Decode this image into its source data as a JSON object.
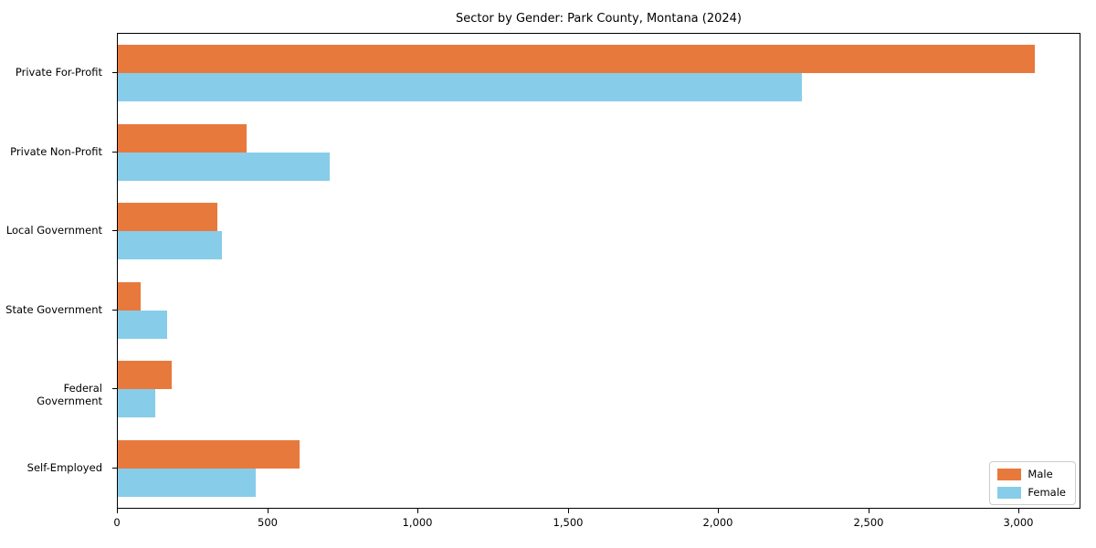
{
  "title": "Sector by Gender: Park County, Montana (2024)",
  "chart_data": {
    "type": "bar",
    "orientation": "horizontal",
    "title": "Sector by Gender: Park County, Montana (2024)",
    "xlabel": "",
    "ylabel": "",
    "categories": [
      "Private For-Profit",
      "Private Non-Profit",
      "Local Government",
      "State Government",
      "Federal Government",
      "Self-Employed"
    ],
    "series": [
      {
        "name": "Male",
        "color": "#E8793D",
        "values": [
          3050,
          430,
          330,
          75,
          180,
          605
        ]
      },
      {
        "name": "Female",
        "color": "#87CDE9",
        "values": [
          2275,
          705,
          345,
          165,
          125,
          460
        ]
      }
    ],
    "xlim": [
      0,
      3200
    ],
    "xticks": [
      0,
      500,
      1000,
      1500,
      2000,
      2500,
      3000
    ],
    "xtick_labels": [
      "0",
      "500",
      "1,000",
      "1,500",
      "2,000",
      "2,500",
      "3,000"
    ],
    "grid": false,
    "legend": {
      "position": "lower right",
      "entries": [
        "Male",
        "Female"
      ]
    }
  }
}
